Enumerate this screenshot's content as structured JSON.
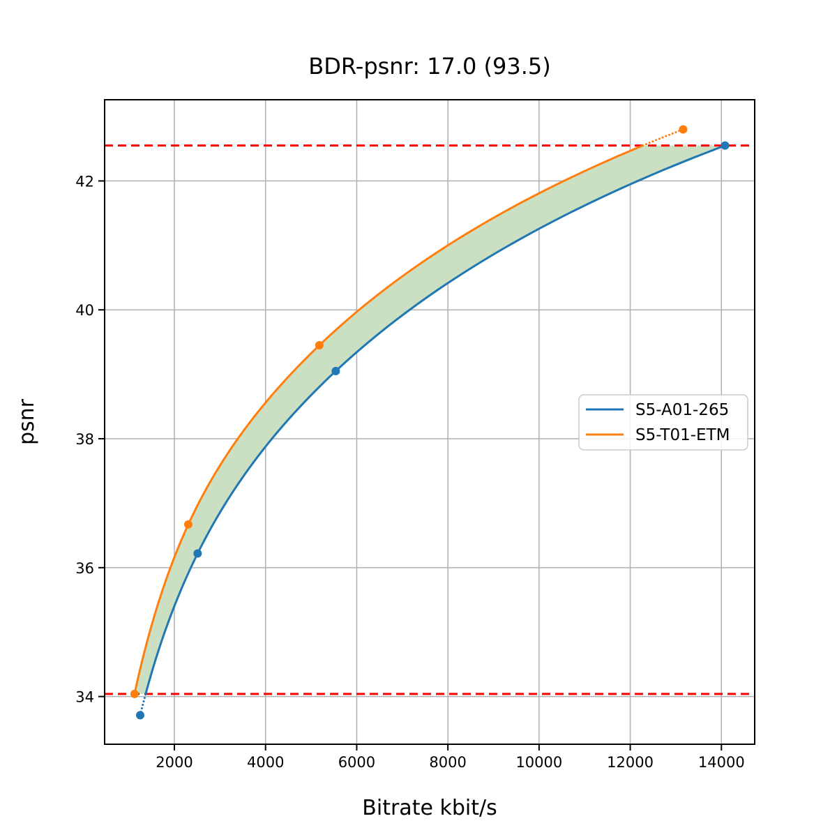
{
  "title": "BDR-psnr: 17.0 (93.5)",
  "chart_data": {
    "type": "line",
    "title": "BDR-psnr: 17.0 (93.5)",
    "xlabel": "Bitrate kbit/s",
    "ylabel": "psnr",
    "xlim": [
      470,
      14730
    ],
    "ylim": [
      33.26,
      43.26
    ],
    "xticks": [
      2000,
      4000,
      6000,
      8000,
      10000,
      12000,
      14000
    ],
    "yticks": [
      34,
      36,
      38,
      40,
      42
    ],
    "grid": true,
    "grid_color": "#b0b0b0",
    "legend_position": "center right",
    "series": [
      {
        "name": "S5-A01-265",
        "color": "#1f77b4",
        "marker": "circle",
        "points": [
          [
            1250,
            33.71
          ],
          [
            2510,
            36.22
          ],
          [
            5540,
            39.05
          ],
          [
            14080,
            42.55
          ]
        ]
      },
      {
        "name": "S5-T01-ETM",
        "color": "#ff7f0e",
        "marker": "circle",
        "points": [
          [
            1125,
            34.04
          ],
          [
            2305,
            36.67
          ],
          [
            5180,
            39.45
          ],
          [
            13160,
            42.8
          ]
        ]
      }
    ],
    "overlap_band": {
      "psnr_min": 34.04,
      "psnr_max": 42.55,
      "fill_color": "#cbdfc3"
    },
    "reference_lines": [
      {
        "y": 34.04,
        "color": "#ff0000",
        "style": "dashed"
      },
      {
        "y": 42.55,
        "color": "#ff0000",
        "style": "dashed"
      }
    ],
    "extensions": [
      {
        "series": "S5-A01-265",
        "from_psnr": 33.71,
        "to_psnr": 34.04,
        "style": "dotted"
      },
      {
        "series": "S5-T01-ETM",
        "from_psnr": 42.55,
        "to_psnr": 42.8,
        "style": "dotted"
      }
    ]
  },
  "legend": {
    "items": [
      {
        "label": "S5-A01-265",
        "color": "#1f77b4"
      },
      {
        "label": "S5-T01-ETM",
        "color": "#ff7f0e"
      }
    ]
  }
}
